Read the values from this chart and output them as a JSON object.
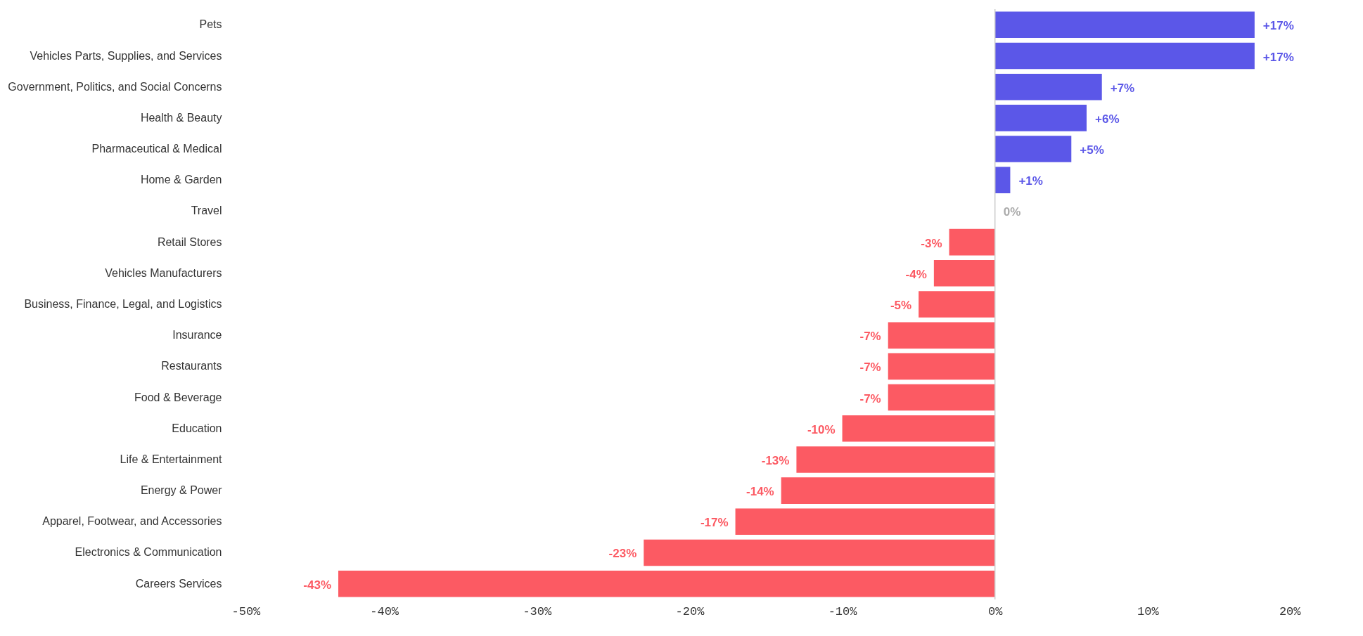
{
  "chart_data": {
    "type": "bar",
    "orientation": "horizontal",
    "categories": [
      "Pets",
      "Vehicles Parts, Supplies, and Services",
      "Government, Politics, and Social Concerns",
      "Health & Beauty",
      "Pharmaceutical & Medical",
      "Home & Garden",
      "Travel",
      "Retail Stores",
      "Vehicles Manufacturers",
      "Business, Finance, Legal, and Logistics",
      "Insurance",
      "Restaurants",
      "Food & Beverage",
      "Education",
      "Life & Entertainment",
      "Energy & Power",
      "Apparel, Footwear, and Accessories",
      "Electronics & Communication",
      "Careers Services"
    ],
    "values": [
      17,
      17,
      7,
      6,
      5,
      1,
      0,
      -3,
      -4,
      -5,
      -7,
      -7,
      -7,
      -10,
      -13,
      -14,
      -17,
      -23,
      -43
    ],
    "value_labels": [
      "+17%",
      "+17%",
      "+7%",
      "+6%",
      "+5%",
      "+1%",
      "0%",
      "-3%",
      "-4%",
      "-5%",
      "-7%",
      "-7%",
      "-7%",
      "-10%",
      "-13%",
      "-14%",
      "-17%",
      "-23%",
      "-43%"
    ],
    "colors": [
      "#5b57e8",
      "#5b57e8",
      "#5b57e8",
      "#5b57e8",
      "#5b57e8",
      "#5b57e8",
      "#aaaaaa",
      "#fc5a63",
      "#fc5a63",
      "#fc5a63",
      "#fc5a63",
      "#fc5a63",
      "#fc5a63",
      "#fc5a63",
      "#fc5a63",
      "#fc5a63",
      "#fc5a63",
      "#fc5a63",
      "#fc5a63"
    ],
    "xlim": [
      -50,
      20
    ],
    "xticks": [
      {
        "value": -50,
        "label": "-50%"
      },
      {
        "value": -40,
        "label": "-40%"
      },
      {
        "value": -30,
        "label": "-30%"
      },
      {
        "value": -20,
        "label": "-20%"
      },
      {
        "value": -10,
        "label": "-10%"
      },
      {
        "value": 0,
        "label": "0%"
      },
      {
        "value": 10,
        "label": "10%"
      },
      {
        "value": 20,
        "label": "20%"
      }
    ],
    "ref_lines": [
      {
        "axis": "x",
        "value": 0,
        "color": "#cccccc"
      }
    ],
    "grid": false
  }
}
